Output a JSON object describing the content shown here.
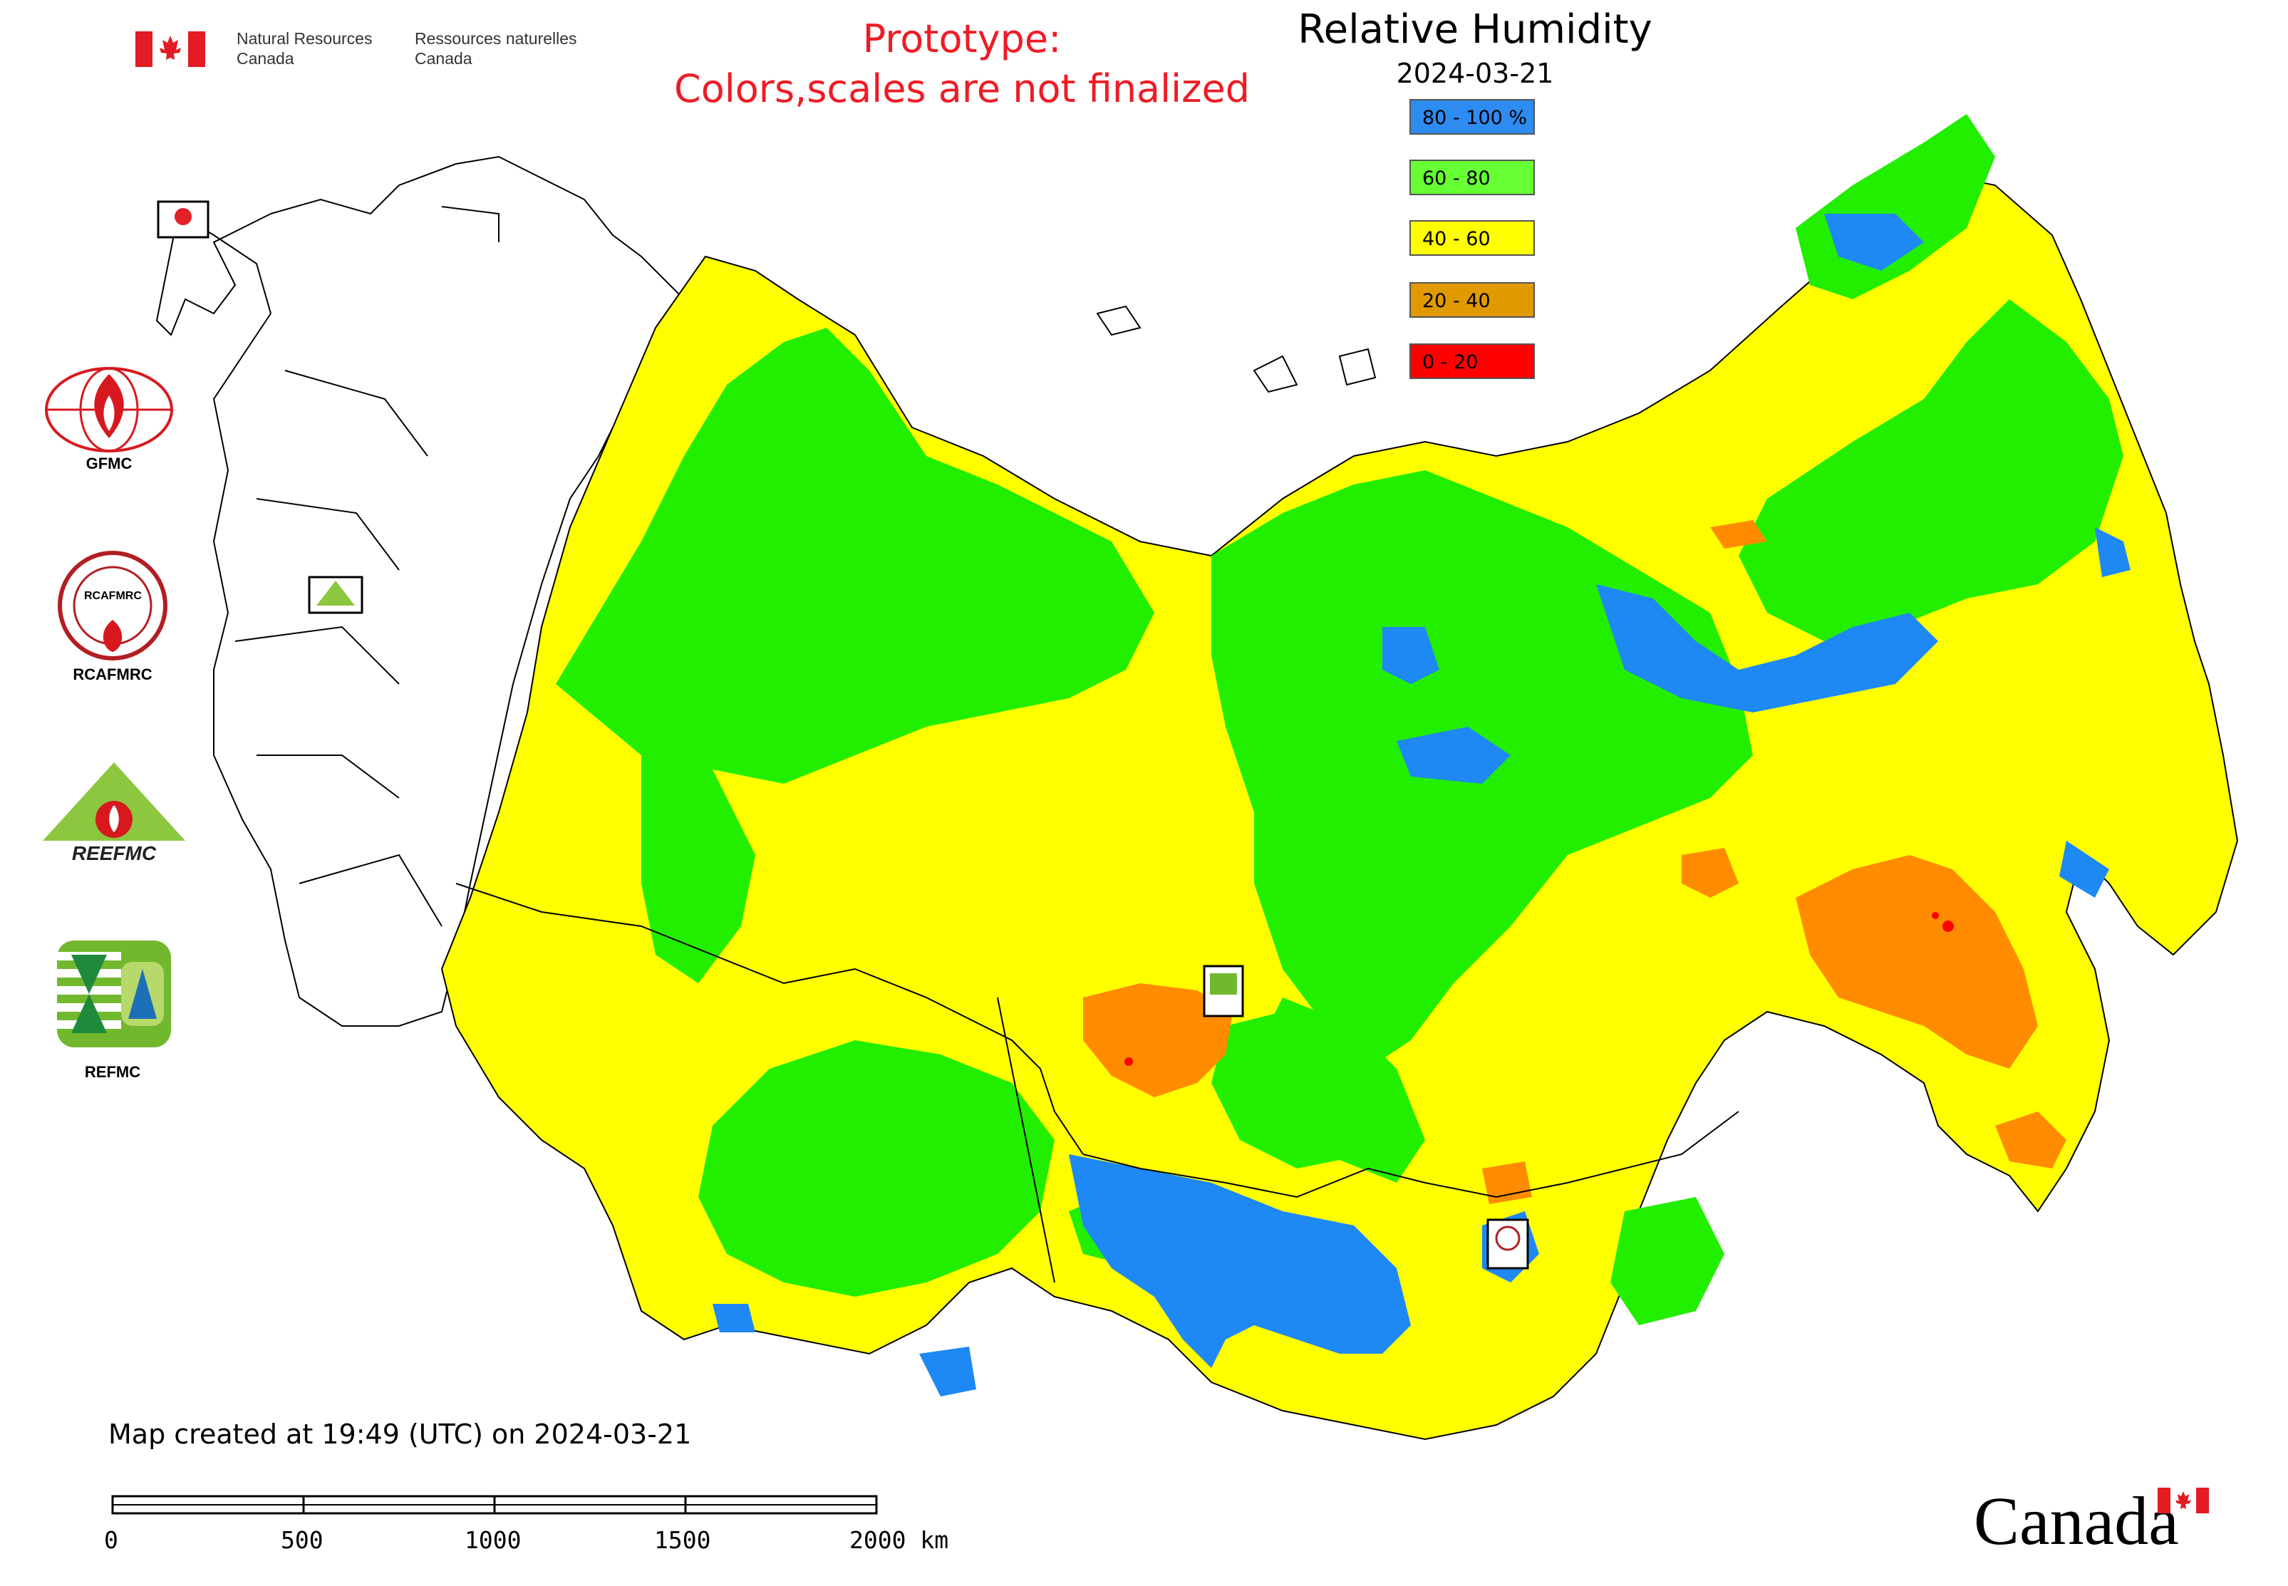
{
  "header": {
    "nrcan_en_line1": "Natural Resources",
    "nrcan_en_line2": "Canada",
    "nrcan_fr_line1": "Ressources naturelles",
    "nrcan_fr_line2": "Canada",
    "prototype_line1": "Prototype:",
    "prototype_line2": "Colors,scales are not finalized"
  },
  "map": {
    "title": "Relative Humidity",
    "date": "2024-03-21",
    "created": "Map created at 19:49 (UTC) on 2024-03-21"
  },
  "legend": {
    "items": [
      {
        "label": "80 - 100 %",
        "color": "#2e8bf0"
      },
      {
        "label": "60 - 80",
        "color": "#66ff33"
      },
      {
        "label": "40 - 60",
        "color": "#ffff00"
      },
      {
        "label": "20 - 40",
        "color": "#e09a00"
      },
      {
        "label": "0 - 20",
        "color": "#ff0000"
      }
    ]
  },
  "map_colors": {
    "blue": "#1e88f5",
    "green": "#22ee00",
    "yellow": "#ffff00",
    "orange": "#ff8c00",
    "red": "#ff0000",
    "outline": "#000000"
  },
  "logos": {
    "gfmc": "GFMC",
    "rcafmrc": "RCAFMRC",
    "rcafmrc_badge": "RCAFMRC",
    "reefmc": "REEFMC",
    "refmc": "REFMC"
  },
  "scalebar": {
    "labels": [
      "0",
      "500",
      "1000",
      "1500",
      "2000 km"
    ]
  },
  "footer": {
    "wordmark": "Canada"
  }
}
